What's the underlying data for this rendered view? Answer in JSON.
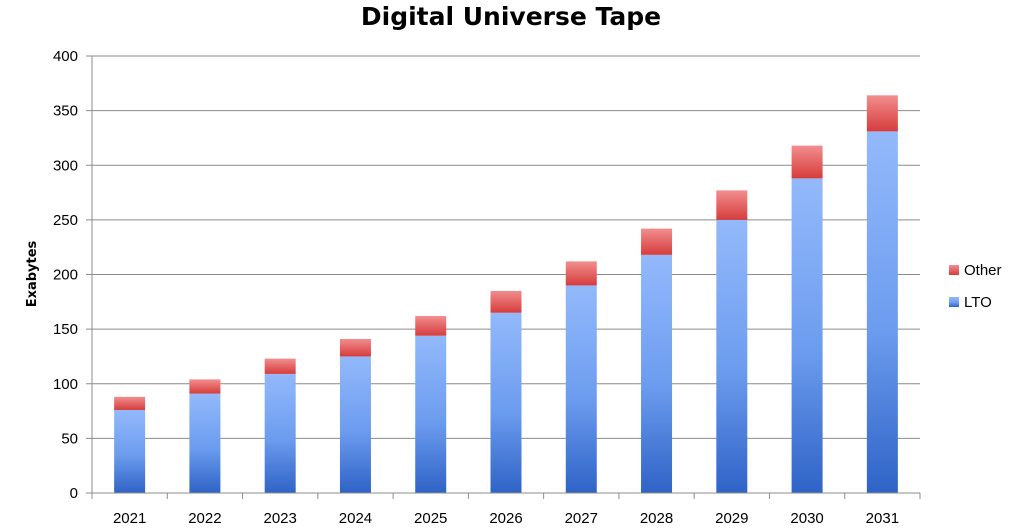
{
  "chart_data": {
    "type": "bar",
    "stacked": true,
    "title": "Digital Universe Tape",
    "xlabel": "",
    "ylabel": "Exabytes",
    "ylim": [
      0,
      400
    ],
    "yticks": [
      0,
      50,
      100,
      150,
      200,
      250,
      300,
      350,
      400
    ],
    "categories": [
      "2021",
      "2022",
      "2023",
      "2024",
      "2025",
      "2026",
      "2027",
      "2028",
      "2029",
      "2030",
      "2031"
    ],
    "series": [
      {
        "name": "LTO",
        "color": "#4f86e0",
        "values": [
          76,
          91,
          109,
          125,
          144,
          165,
          190,
          218,
          250,
          288,
          331
        ]
      },
      {
        "name": "Other",
        "color": "#e55a5a",
        "values": [
          12,
          13,
          14,
          16,
          18,
          20,
          22,
          24,
          27,
          30,
          33
        ]
      }
    ],
    "legend": {
      "position": "right",
      "order": [
        "Other",
        "LTO"
      ]
    },
    "grid": true
  }
}
